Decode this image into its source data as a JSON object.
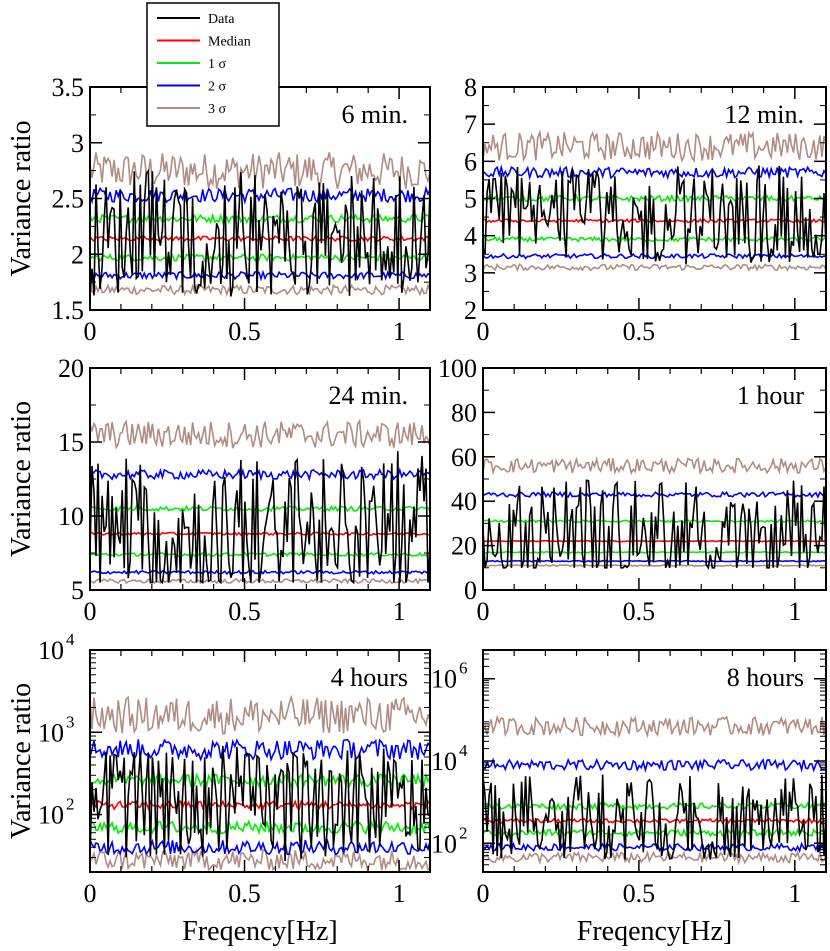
{
  "chart_data": {
    "type": "line",
    "xlabel": "Freqency[Hz]",
    "ylabel": "Variance ratio",
    "legend": {
      "placement": "top-left",
      "entries": [
        {
          "name": "Data",
          "color": "#000000"
        },
        {
          "name": "Median",
          "color": "#ff0000"
        },
        {
          "name": "1 σ",
          "color": "#00ee00"
        },
        {
          "name": "2 σ",
          "color": "#0000ff"
        },
        {
          "name": "3 σ",
          "color": "#b08c84"
        }
      ]
    },
    "xlim": [
      0,
      1.1
    ],
    "xticks": [
      0,
      0.5,
      1
    ],
    "xtick_labels": [
      "0",
      "0.5",
      "1"
    ],
    "panels": [
      {
        "label": "6 min.",
        "scale": "linear",
        "ylim": [
          1.5,
          3.5
        ],
        "yticks": [
          1.5,
          2,
          2.5,
          3,
          3.5
        ],
        "ytick_labels": [
          "1.5",
          "2",
          "2.5",
          "3",
          "3.5"
        ],
        "levels": {
          "median": 2.14,
          "sigma1_low": 1.97,
          "sigma1_high": 2.32,
          "sigma2_low": 1.81,
          "sigma2_high": 2.53,
          "sigma3_low": 1.68,
          "sigma3_high": 2.75
        },
        "data_range": [
          1.6,
          2.75
        ]
      },
      {
        "label": "12 min.",
        "scale": "linear",
        "ylim": [
          2,
          8
        ],
        "yticks": [
          2,
          3,
          4,
          5,
          6,
          7,
          8
        ],
        "ytick_labels": [
          "2",
          "3",
          "4",
          "5",
          "6",
          "7",
          "8"
        ],
        "levels": {
          "median": 4.4,
          "sigma1_low": 3.9,
          "sigma1_high": 5.0,
          "sigma2_low": 3.45,
          "sigma2_high": 5.7,
          "sigma3_low": 3.15,
          "sigma3_high": 6.4
        },
        "data_range": [
          3.2,
          5.9
        ]
      },
      {
        "label": "24 min.",
        "scale": "linear",
        "ylim": [
          5,
          20
        ],
        "yticks": [
          5,
          10,
          15,
          20
        ],
        "ytick_labels": [
          "5",
          "10",
          "15",
          "20"
        ],
        "levels": {
          "median": 8.8,
          "sigma1_low": 7.4,
          "sigma1_high": 10.5,
          "sigma2_low": 6.2,
          "sigma2_high": 12.8,
          "sigma3_low": 5.6,
          "sigma3_high": 15.5
        },
        "data_range": [
          5.5,
          14.5
        ]
      },
      {
        "label": "1 hour",
        "scale": "linear",
        "ylim": [
          0,
          100
        ],
        "yticks": [
          0,
          20,
          40,
          60,
          80,
          100
        ],
        "ytick_labels": [
          "0",
          "20",
          "40",
          "60",
          "80",
          "100"
        ],
        "levels": {
          "median": 22,
          "sigma1_low": 17,
          "sigma1_high": 31,
          "sigma2_low": 13,
          "sigma2_high": 43,
          "sigma3_low": 11,
          "sigma3_high": 56
        },
        "data_range": [
          10,
          50
        ]
      },
      {
        "label": "4 hours",
        "scale": "log",
        "ylim": [
          20,
          10000
        ],
        "yticks": [
          100,
          1000,
          10000
        ],
        "ytick_labels": [
          "10",
          "10",
          "10"
        ],
        "ytick_exponents": [
          "2",
          "3",
          "4"
        ],
        "levels": {
          "median": 130,
          "sigma1_low": 70,
          "sigma1_high": 260,
          "sigma2_low": 40,
          "sigma2_high": 620,
          "sigma3_low": 28,
          "sigma3_high": 1600
        },
        "data_range": [
          25,
          700
        ]
      },
      {
        "label": "8 hours",
        "scale": "log",
        "ylim": [
          20,
          5000000
        ],
        "yticks": [
          100,
          10000,
          1000000
        ],
        "ytick_labels": [
          "10",
          "10",
          "10"
        ],
        "ytick_exponents": [
          "2",
          "4",
          "6"
        ],
        "levels": {
          "median": 350,
          "sigma1_low": 180,
          "sigma1_high": 800,
          "sigma2_low": 80,
          "sigma2_high": 8000,
          "sigma3_low": 45,
          "sigma3_high": 70000
        },
        "data_range": [
          40,
          5000
        ]
      }
    ]
  }
}
